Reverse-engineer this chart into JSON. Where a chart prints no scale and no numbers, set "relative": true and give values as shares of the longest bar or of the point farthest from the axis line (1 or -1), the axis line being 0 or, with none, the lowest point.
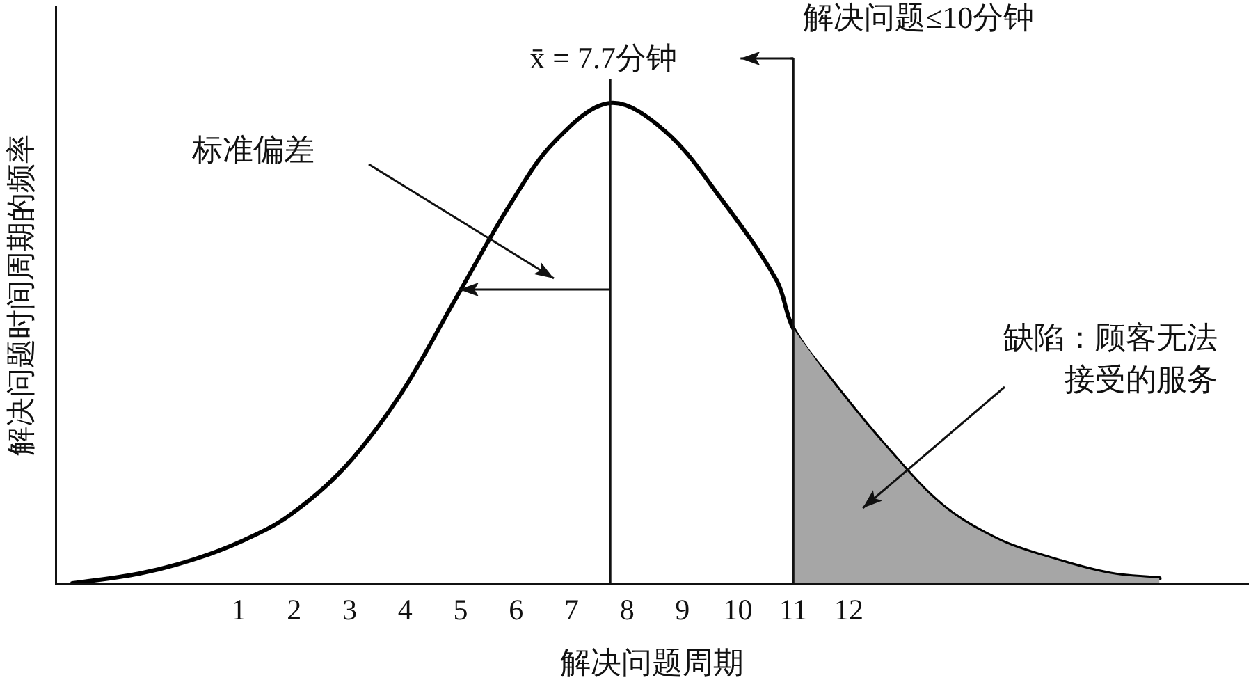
{
  "chart_data": {
    "type": "line",
    "relative": true,
    "xlabel": "解决问题周期",
    "ylabel": "解决问题时间周期的频率",
    "xlim": [
      -2.3,
      19.2
    ],
    "xticks": [
      1,
      2,
      3,
      4,
      5,
      6,
      7,
      8,
      9,
      10,
      11,
      12
    ],
    "series": [
      {
        "type": "area",
        "color": "#a6a6a6",
        "x": [
          11.0,
          11.7,
          12.7,
          13.7,
          14.7,
          15.7,
          16.7,
          17.6
        ],
        "values": [
          0.53,
          0.42,
          0.28,
          0.16,
          0.09,
          0.05,
          0.02,
          0.01
        ]
      },
      {
        "type": "line",
        "color": "#000000",
        "x": [
          -2.0,
          -0.8,
          0.2,
          1.1,
          1.9,
          2.9,
          3.9,
          4.9,
          5.9,
          6.7,
          7.7,
          8.7,
          9.7,
          10.7,
          11.0,
          11.7,
          12.7,
          13.7,
          14.7,
          15.7,
          16.7,
          17.6
        ],
        "values": [
          0.0,
          0.02,
          0.05,
          0.09,
          0.14,
          0.24,
          0.39,
          0.59,
          0.79,
          0.92,
          1.0,
          0.94,
          0.8,
          0.63,
          0.53,
          0.42,
          0.28,
          0.16,
          0.09,
          0.05,
          0.02,
          0.01
        ]
      }
    ],
    "ref_lines": [
      {
        "axis": "x",
        "value": 7.7,
        "label": "x̄ = 7.7分钟"
      },
      {
        "axis": "x",
        "value": 11,
        "label": "解决问题≤10分钟"
      }
    ],
    "annotations": [
      "标准偏差",
      "缺陷：顾客无法接受的服务"
    ],
    "grid": false,
    "legend": false,
    "marker": "none",
    "line_style": "solid"
  }
}
